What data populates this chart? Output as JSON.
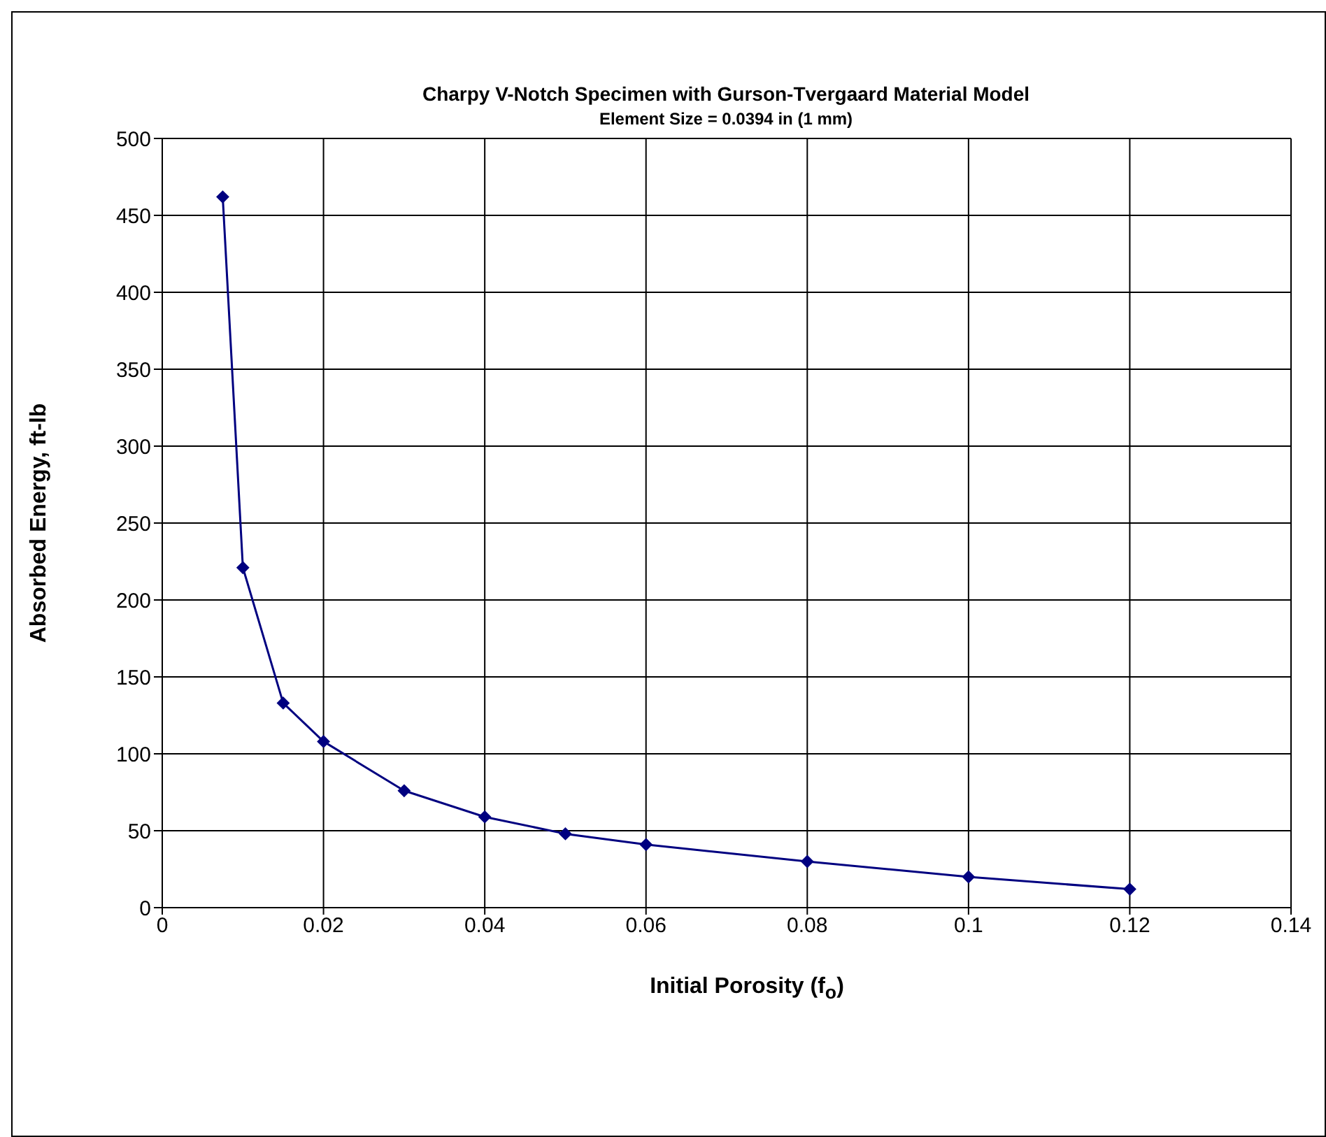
{
  "chart_data": {
    "type": "line",
    "title": "Charpy V-Notch Specimen with Gurson-Tvergaard Material Model",
    "subtitle": "Element Size = 0.0394 in (1 mm)",
    "xlabel": "Initial Porosity (f$_{o}$)",
    "ylabel": "Absorbed Energy, ft-lb",
    "x": [
      0.0075,
      0.01,
      0.015,
      0.02,
      0.03,
      0.04,
      0.05,
      0.06,
      0.08,
      0.1,
      0.12
    ],
    "series": [
      {
        "color": "#000080",
        "values": [
          462,
          221,
          133,
          108,
          76,
          59,
          48,
          41,
          30,
          20,
          12
        ]
      }
    ],
    "xlim": [
      0,
      0.14
    ],
    "xticks": [
      0,
      0.02,
      0.04,
      0.06,
      0.08,
      0.1,
      0.12,
      0.14
    ],
    "ylim": [
      0,
      500
    ],
    "yticks": [
      0,
      50,
      100,
      150,
      200,
      250,
      300,
      350,
      400,
      450,
      500
    ],
    "grid": true,
    "legend": false,
    "marker": "diamond",
    "line_style": "solid"
  }
}
